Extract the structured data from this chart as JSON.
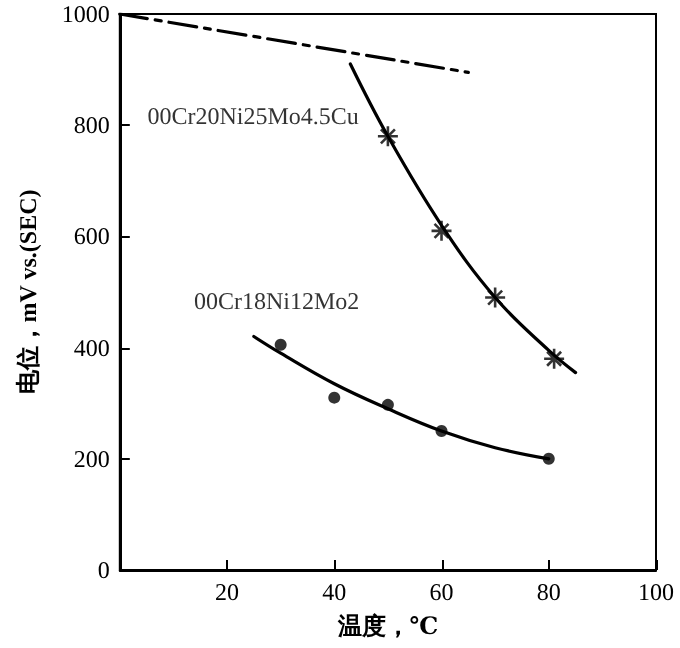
{
  "chart_data": {
    "type": "scatter",
    "xlabel": "温度，℃",
    "ylabel": "电位，mV vs.(SEC)",
    "xlim": [
      0,
      100
    ],
    "xticks": [
      20,
      40,
      60,
      80,
      100
    ],
    "ylim": [
      0,
      1000
    ],
    "yticks": [
      0,
      200,
      400,
      600,
      800,
      1000
    ],
    "grid": false,
    "legend": false,
    "series": [
      {
        "name": "00Cr20Ni25Mo4.5Cu",
        "marker": "cross",
        "color": "#000000",
        "x": [
          50,
          60,
          70,
          81
        ],
        "values": [
          780,
          610,
          490,
          380
        ]
      },
      {
        "type": "line",
        "marker": "none",
        "line_style": "solid",
        "color": "#000000",
        "x": [
          43,
          50,
          60,
          70,
          80,
          85
        ],
        "values": [
          910,
          780,
          620,
          490,
          395,
          355
        ]
      },
      {
        "name": "00Cr18Ni12Mo2",
        "marker": "circle",
        "color": "#000000",
        "x": [
          30,
          40,
          50,
          60,
          80
        ],
        "values": [
          405,
          310,
          297,
          250,
          200
        ]
      },
      {
        "type": "line",
        "marker": "none",
        "line_style": "solid",
        "color": "#000000",
        "x": [
          25,
          30,
          40,
          50,
          60,
          70,
          80
        ],
        "values": [
          420,
          390,
          335,
          290,
          250,
          220,
          200
        ]
      },
      {
        "type": "line",
        "marker": "none",
        "line_style": "dashed",
        "color": "#000000",
        "x": [
          0,
          65
        ],
        "values": [
          1000,
          895
        ]
      }
    ]
  }
}
